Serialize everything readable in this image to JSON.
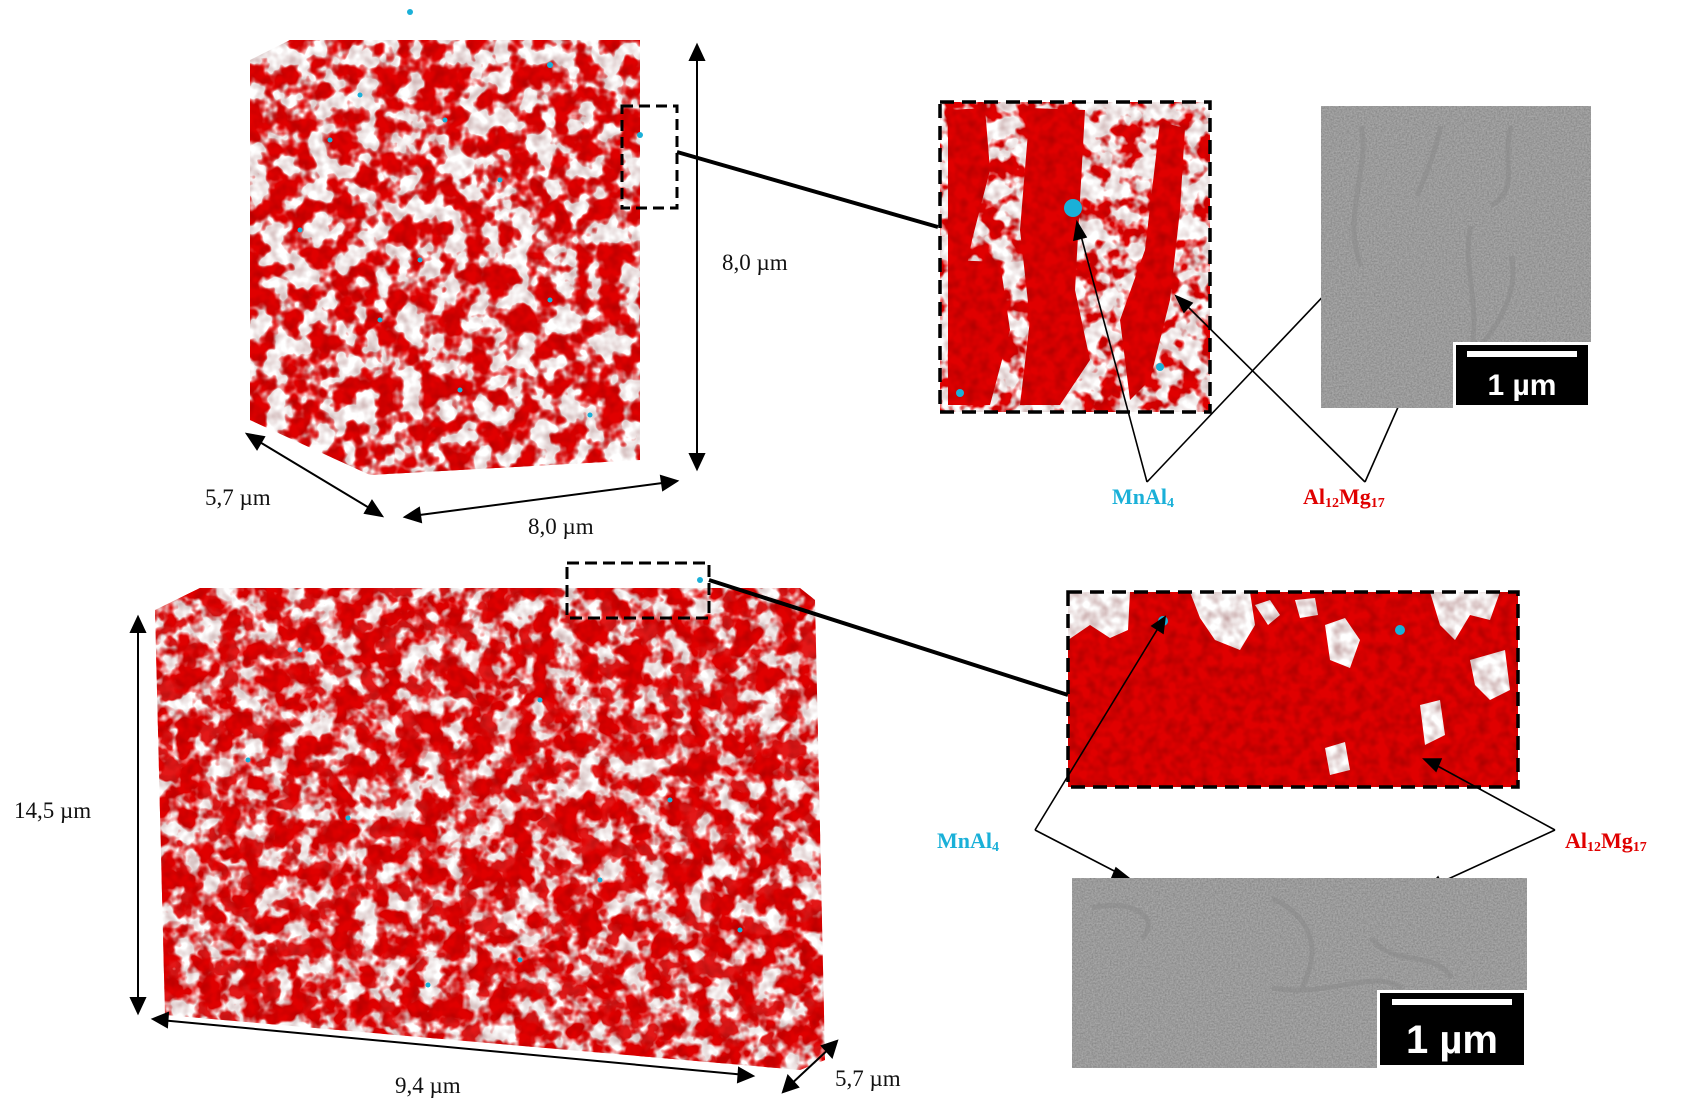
{
  "top_panel": {
    "dim_height": "8,0 µm",
    "dim_depth": "5,7 µm",
    "dim_width": "8,0 µm",
    "sem_scalebar": "1 µm",
    "label_mn": "MnAl",
    "label_mn_sub": "4",
    "label_al": "Al",
    "label_al_sub1": "12",
    "label_al_mg": "Mg",
    "label_al_sub2": "17"
  },
  "bottom_panel": {
    "dim_height": "14,5 µm",
    "dim_width": "9,4 µm",
    "dim_depth": "5,7 µm",
    "sem_scalebar": "1 µm",
    "label_mn": "MnAl",
    "label_mn_sub": "4",
    "label_al": "Al",
    "label_al_sub1": "12",
    "label_al_mg": "Mg",
    "label_al_sub2": "17"
  },
  "colors": {
    "al12mg17": "#e00000",
    "mnal4": "#1ab0d8",
    "sem_background": "#505050"
  }
}
